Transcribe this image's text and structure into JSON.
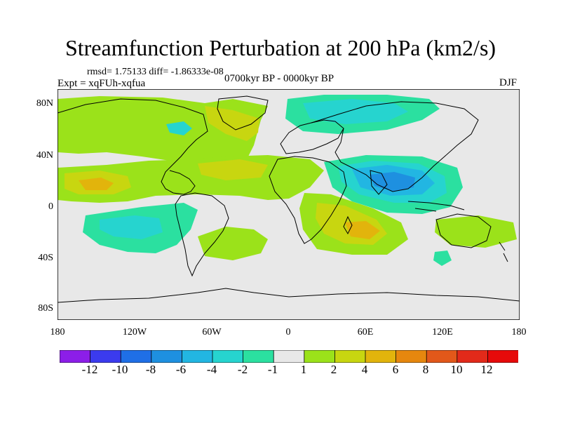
{
  "title": "Streamfunction Perturbation at 200 hPa (km2/s)",
  "stats_text": "rmsd= 1.75133  diff= -1.86333e-08",
  "experiment_label": "Expt = xqFUh-xqfua",
  "period_label": "0700kyr BP - 0000kyr BP",
  "season_label": "DJF",
  "latitude_ticks": [
    "80N",
    "40N",
    "0",
    "40S",
    "80S"
  ],
  "longitude_ticks": [
    "180",
    "120W",
    "60W",
    "0",
    "60E",
    "120E",
    "180"
  ],
  "colorbar": {
    "labels": [
      "-12",
      "-10",
      "-8",
      "-6",
      "-4",
      "-2",
      "-1",
      "1",
      "2",
      "4",
      "6",
      "8",
      "10",
      "12"
    ],
    "colors": [
      "#8c1ee8",
      "#3b3bee",
      "#1f6fe6",
      "#1e90e0",
      "#22b6e2",
      "#26d4cf",
      "#2be0a0",
      "#e8e8e8",
      "#9be21a",
      "#c8d610",
      "#e2b40c",
      "#e6870e",
      "#e2581a",
      "#e22a1a",
      "#e60a0a"
    ]
  },
  "colors": {
    "background": "#e8e8e8",
    "coastline": "#000000"
  }
}
